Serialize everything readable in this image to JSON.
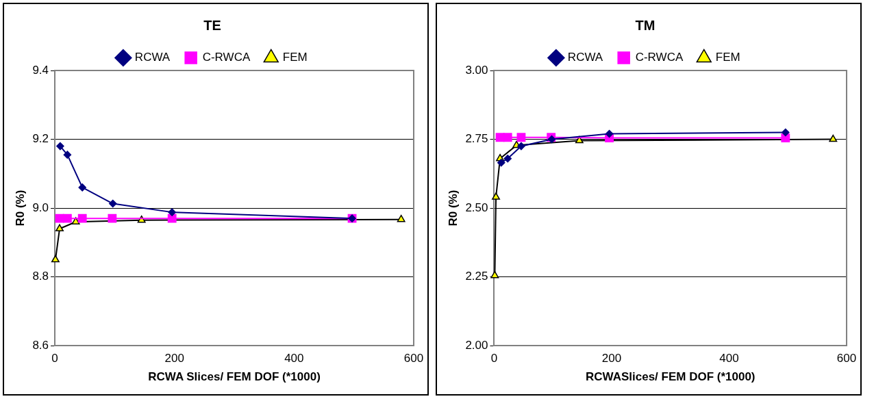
{
  "chart_data": [
    {
      "type": "line",
      "title": "TE",
      "xlabel": "RCWA Slices/ FEM DOF (*1000)",
      "ylabel": "R0 (%)",
      "xlim": [
        0,
        600
      ],
      "xticks": [
        0,
        200,
        400,
        600
      ],
      "ylim": [
        8.6,
        9.4
      ],
      "yticks": [
        8.6,
        8.8,
        {
          "value": 9.0,
          "label": "9.0"
        },
        9.2,
        9.4
      ],
      "grid": "y",
      "legend": "top",
      "series": [
        {
          "name": "RCWA",
          "color": "#000080",
          "marker": "diamond",
          "x": [
            9,
            21,
            46,
            97,
            196,
            497
          ],
          "values": [
            9.18,
            9.155,
            9.06,
            9.013,
            8.988,
            8.97
          ]
        },
        {
          "name": "C-RWCA",
          "color": "#ff00ff",
          "marker": "square",
          "x": [
            8,
            21,
            46,
            96,
            196,
            497
          ],
          "values": [
            8.97,
            8.97,
            8.97,
            8.97,
            8.97,
            8.97
          ]
        },
        {
          "name": "FEM",
          "color": "#000000",
          "colors": [
            "#ffff00",
            "#ffff00",
            "#ffff00",
            "#ffff00",
            "#ffff00"
          ],
          "marker": "triangle",
          "x": [
            1,
            8,
            35,
            145,
            579
          ],
          "values": [
            8.85,
            8.94,
            8.96,
            8.965,
            8.967
          ]
        }
      ]
    },
    {
      "type": "line",
      "title": "TM",
      "xlabel": "RCWASlices/ FEM DOF (*1000)",
      "ylabel": "R0 (%)",
      "xlim": [
        0,
        600
      ],
      "xticks": [
        0,
        200,
        400,
        600
      ],
      "ylim": [
        2.0,
        3.0
      ],
      "yticks": [
        {
          "value": 2.0,
          "label": "2.00"
        },
        {
          "value": 2.25,
          "label": "2.25"
        },
        {
          "value": 2.5,
          "label": "2.50"
        },
        {
          "value": 2.75,
          "label": "2.75"
        },
        {
          "value": 3.0,
          "label": "3.00"
        }
      ],
      "grid": "y",
      "legend": "top",
      "series": [
        {
          "name": "RCWA",
          "color": "#000080",
          "marker": "diamond",
          "x": [
            12,
            23,
            46,
            98,
            196,
            496
          ],
          "values": [
            2.665,
            2.68,
            2.725,
            2.75,
            2.77,
            2.775
          ]
        },
        {
          "name": "C-RWCA",
          "color": "#ff00ff",
          "marker": "square",
          "x": [
            10,
            23,
            46,
            97,
            196,
            496
          ],
          "values": [
            2.757,
            2.757,
            2.757,
            2.757,
            2.755,
            2.755
          ]
        },
        {
          "name": "FEM",
          "color": "#000000",
          "colors": [
            "#ffff00",
            "#ffff00",
            "#ffff00",
            "#ffff00",
            "#ffff00",
            "#ffff00"
          ],
          "marker": "triangle",
          "x": [
            1,
            3,
            10,
            38,
            145,
            577
          ],
          "values": [
            2.255,
            2.54,
            2.68,
            2.728,
            2.745,
            2.75
          ]
        }
      ]
    }
  ]
}
